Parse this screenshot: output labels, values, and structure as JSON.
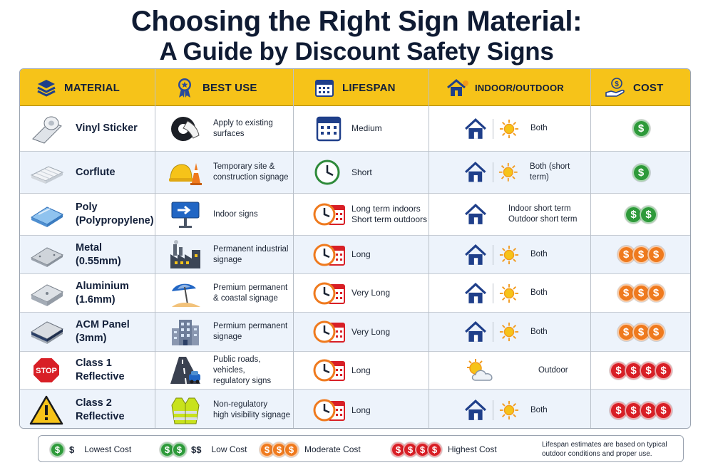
{
  "title_line1": "Choosing the Right Sign Material:",
  "title_line2": "A Guide by Discount Safety Signs",
  "columns": {
    "material": "MATERIAL",
    "best_use": "BEST USE",
    "lifespan": "LIFESPAN",
    "indoor_outdoor": "INDOOR/OUTDOOR",
    "cost": "COST"
  },
  "rows": [
    {
      "material_line1": "Vinyl Sticker",
      "material_line2": "",
      "material_icon": "vinyl-roll-icon",
      "use_line1": "Apply to existing",
      "use_line2": "surfaces",
      "use_icon": "sticker-applying-icon",
      "lifespan_line1": "Medium",
      "lifespan_line2": "",
      "lifespan_icon": "calendar-icon",
      "io_line1": "Both",
      "io_line2": "",
      "io_icon": "house-and-sun-icon",
      "cost_level": 1,
      "cost_color": "#2e9a3a"
    },
    {
      "material_line1": "Corflute",
      "material_line2": "",
      "material_icon": "corflute-sheet-icon",
      "use_line1": "Temporary site &",
      "use_line2": "construction signage",
      "use_icon": "hard-hat-cone-icon",
      "lifespan_line1": "Short",
      "lifespan_line2": "",
      "lifespan_icon": "clock-icon",
      "io_line1": "Both (short term)",
      "io_line2": "",
      "io_icon": "house-and-sun-icon",
      "cost_level": 1,
      "cost_color": "#2e9a3a"
    },
    {
      "material_line1": "Poly",
      "material_line2": "(Polypropylene)",
      "material_icon": "poly-sheet-icon",
      "use_line1": "Indoor signs",
      "use_line2": "",
      "use_icon": "indoor-sign-icon",
      "lifespan_line1": "Long term indoors",
      "lifespan_line2": "Short term outdoors",
      "lifespan_icon": "clock-calendar-icon",
      "io_line1": "Indoor short term",
      "io_line2": "Outdoor short term",
      "io_icon": "house-icon",
      "cost_level": 2,
      "cost_color": "#2e9a3a"
    },
    {
      "material_line1": "Metal",
      "material_line2": "(0.55mm)",
      "material_icon": "metal-sheet-icon",
      "use_line1": "Permanent industrial",
      "use_line2": "signage",
      "use_icon": "factory-icon",
      "lifespan_line1": "Long",
      "lifespan_line2": "",
      "lifespan_icon": "clock-calendar-icon",
      "io_line1": "Both",
      "io_line2": "",
      "io_icon": "house-and-sun-icon",
      "cost_level": 3,
      "cost_color": "#ef7a1e"
    },
    {
      "material_line1": "Aluminium",
      "material_line2": "(1.6mm)",
      "material_icon": "aluminium-sheet-icon",
      "use_line1": "Premium permanent",
      "use_line2": "& coastal signage",
      "use_icon": "beach-umbrella-icon",
      "lifespan_line1": "Very Long",
      "lifespan_line2": "",
      "lifespan_icon": "clock-calendar-icon",
      "io_line1": "Both",
      "io_line2": "",
      "io_icon": "house-and-sun-icon",
      "cost_level": 3,
      "cost_color": "#ef7a1e"
    },
    {
      "material_line1": "ACM Panel",
      "material_line2": "(3mm)",
      "material_icon": "acm-panel-icon",
      "use_line1": "Permium permanent",
      "use_line2": "signage",
      "use_icon": "office-building-icon",
      "lifespan_line1": "Very Long",
      "lifespan_line2": "",
      "lifespan_icon": "clock-calendar-icon",
      "io_line1": "Both",
      "io_line2": "",
      "io_icon": "house-and-sun-icon",
      "cost_level": 3,
      "cost_color": "#ef7a1e"
    },
    {
      "material_line1": "Class 1",
      "material_line2": "Reflective",
      "material_icon": "stop-sign-icon",
      "use_line1": "Public roads, vehicles,",
      "use_line2": "regulatory signs",
      "use_icon": "road-car-icon",
      "lifespan_line1": "Long",
      "lifespan_line2": "",
      "lifespan_icon": "clock-calendar-icon",
      "io_line1": "Outdoor",
      "io_line2": "",
      "io_icon": "sun-cloud-icon",
      "cost_level": 4,
      "cost_color": "#d81f26"
    },
    {
      "material_line1": "Class 2",
      "material_line2": "Reflective",
      "material_icon": "warning-sign-icon",
      "use_line1": "Non-regulatory",
      "use_line2": "high visibility signage",
      "use_icon": "hi-vis-vest-icon",
      "lifespan_line1": "Long",
      "lifespan_line2": "",
      "lifespan_icon": "clock-calendar-icon",
      "io_line1": "Both",
      "io_line2": "",
      "io_icon": "house-and-sun-icon",
      "cost_level": 4,
      "cost_color": "#d81f26"
    }
  ],
  "legend": {
    "items": [
      {
        "symbol": "$",
        "label": "Lowest Cost",
        "coins": 1,
        "color": "#2e9a3a"
      },
      {
        "symbol": "$$",
        "label": "Low Cost",
        "coins": 2,
        "color": "#2e9a3a"
      },
      {
        "symbol": "",
        "label": "Moderate Cost",
        "coins": 3,
        "color": "#ef7a1e"
      },
      {
        "symbol": "",
        "label": "Highest Cost",
        "coins": 4,
        "color": "#d81f26"
      }
    ],
    "note": "Lifespan estimates are based on typical outdoor conditions and proper use."
  },
  "coin_glyph": "$"
}
